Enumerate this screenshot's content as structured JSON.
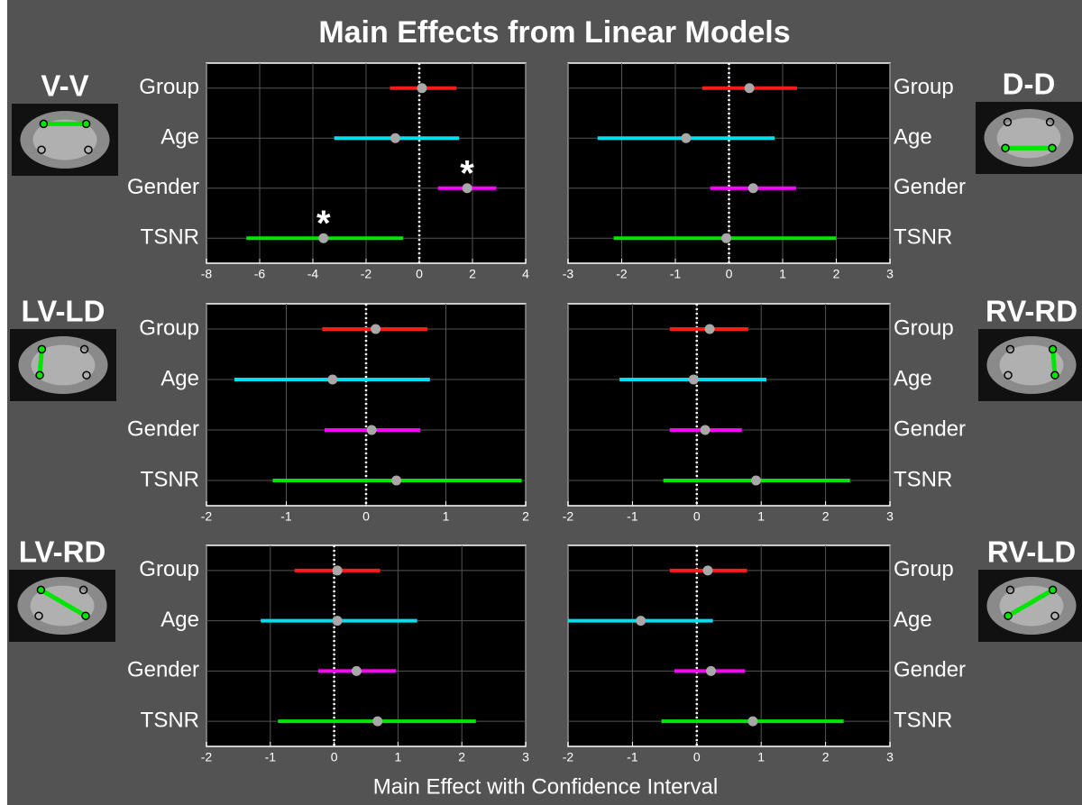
{
  "title": "Main Effects from Linear Models",
  "x_label": "Main Effect with Confidence Interval",
  "chart_data": [
    {
      "type": "forest",
      "label": "V-V",
      "categories": [
        "Group",
        "Age",
        "Gender",
        "TSNR"
      ],
      "values": [
        0.1,
        -0.9,
        1.8,
        -3.6
      ],
      "lower": [
        -1.1,
        -3.2,
        0.7,
        -6.5
      ],
      "upper": [
        1.4,
        1.5,
        2.9,
        -0.6
      ],
      "significance": [
        null,
        null,
        "*",
        "*"
      ],
      "colors": [
        "#ff1a1a",
        "#00e0f0",
        "#ff00ff",
        "#00e600"
      ],
      "point_color": "#a8a8a8",
      "xlim": [
        -8,
        4
      ],
      "xticks": [
        -8,
        -6,
        -4,
        -2,
        0,
        2,
        4
      ],
      "grid": true
    },
    {
      "type": "forest",
      "label": "D-D",
      "categories": [
        "Group",
        "Age",
        "Gender",
        "TSNR"
      ],
      "values": [
        0.38,
        -0.8,
        0.45,
        -0.05
      ],
      "lower": [
        -0.5,
        -2.45,
        -0.35,
        -2.15
      ],
      "upper": [
        1.27,
        0.85,
        1.25,
        2.0
      ],
      "colors": [
        "#ff1a1a",
        "#00e0f0",
        "#ff00ff",
        "#00e600"
      ],
      "point_color": "#a8a8a8",
      "xlim": [
        -3,
        3
      ],
      "xticks": [
        -3,
        -2,
        -1,
        0,
        1,
        2,
        3
      ],
      "grid": true
    },
    {
      "type": "forest",
      "label": "LV-LD",
      "categories": [
        "Group",
        "Age",
        "Gender",
        "TSNR"
      ],
      "values": [
        0.12,
        -0.42,
        0.07,
        0.38
      ],
      "lower": [
        -0.55,
        -1.65,
        -0.52,
        -1.17
      ],
      "upper": [
        0.77,
        0.8,
        0.68,
        1.95
      ],
      "colors": [
        "#ff1a1a",
        "#00e0f0",
        "#ff00ff",
        "#00e600"
      ],
      "point_color": "#a8a8a8",
      "xlim": [
        -2,
        2
      ],
      "xticks": [
        -2,
        -1,
        0,
        1,
        2
      ],
      "grid": true
    },
    {
      "type": "forest",
      "label": "RV-RD",
      "categories": [
        "Group",
        "Age",
        "Gender",
        "TSNR"
      ],
      "values": [
        0.2,
        -0.05,
        0.13,
        0.92
      ],
      "lower": [
        -0.42,
        -1.2,
        -0.42,
        -0.52
      ],
      "upper": [
        0.8,
        1.08,
        0.7,
        2.38
      ],
      "colors": [
        "#ff1a1a",
        "#00e0f0",
        "#ff00ff",
        "#00e600"
      ],
      "point_color": "#a8a8a8",
      "xlim": [
        -2,
        3
      ],
      "xticks": [
        -2,
        -1,
        0,
        1,
        2,
        3
      ],
      "grid": true
    },
    {
      "type": "forest",
      "label": "LV-RD",
      "categories": [
        "Group",
        "Age",
        "Gender",
        "TSNR"
      ],
      "values": [
        0.05,
        0.05,
        0.35,
        0.68
      ],
      "lower": [
        -0.62,
        -1.15,
        -0.25,
        -0.88
      ],
      "upper": [
        0.72,
        1.3,
        0.97,
        2.22
      ],
      "colors": [
        "#ff1a1a",
        "#00e0f0",
        "#ff00ff",
        "#00e600"
      ],
      "point_color": "#a8a8a8",
      "xlim": [
        -2,
        3
      ],
      "xticks": [
        -2,
        -1,
        0,
        1,
        2,
        3
      ],
      "grid": true
    },
    {
      "type": "forest",
      "label": "RV-LD",
      "categories": [
        "Group",
        "Age",
        "Gender",
        "TSNR"
      ],
      "values": [
        0.17,
        -0.87,
        0.22,
        0.87
      ],
      "lower": [
        -0.42,
        -2.0,
        -0.35,
        -0.55
      ],
      "upper": [
        0.78,
        0.25,
        0.75,
        2.28
      ],
      "colors": [
        "#ff1a1a",
        "#00e0f0",
        "#ff00ff",
        "#00e600"
      ],
      "point_color": "#a8a8a8",
      "xlim": [
        -2,
        3
      ],
      "xticks": [
        -2,
        -1,
        0,
        1,
        2,
        3
      ],
      "grid": true
    }
  ]
}
